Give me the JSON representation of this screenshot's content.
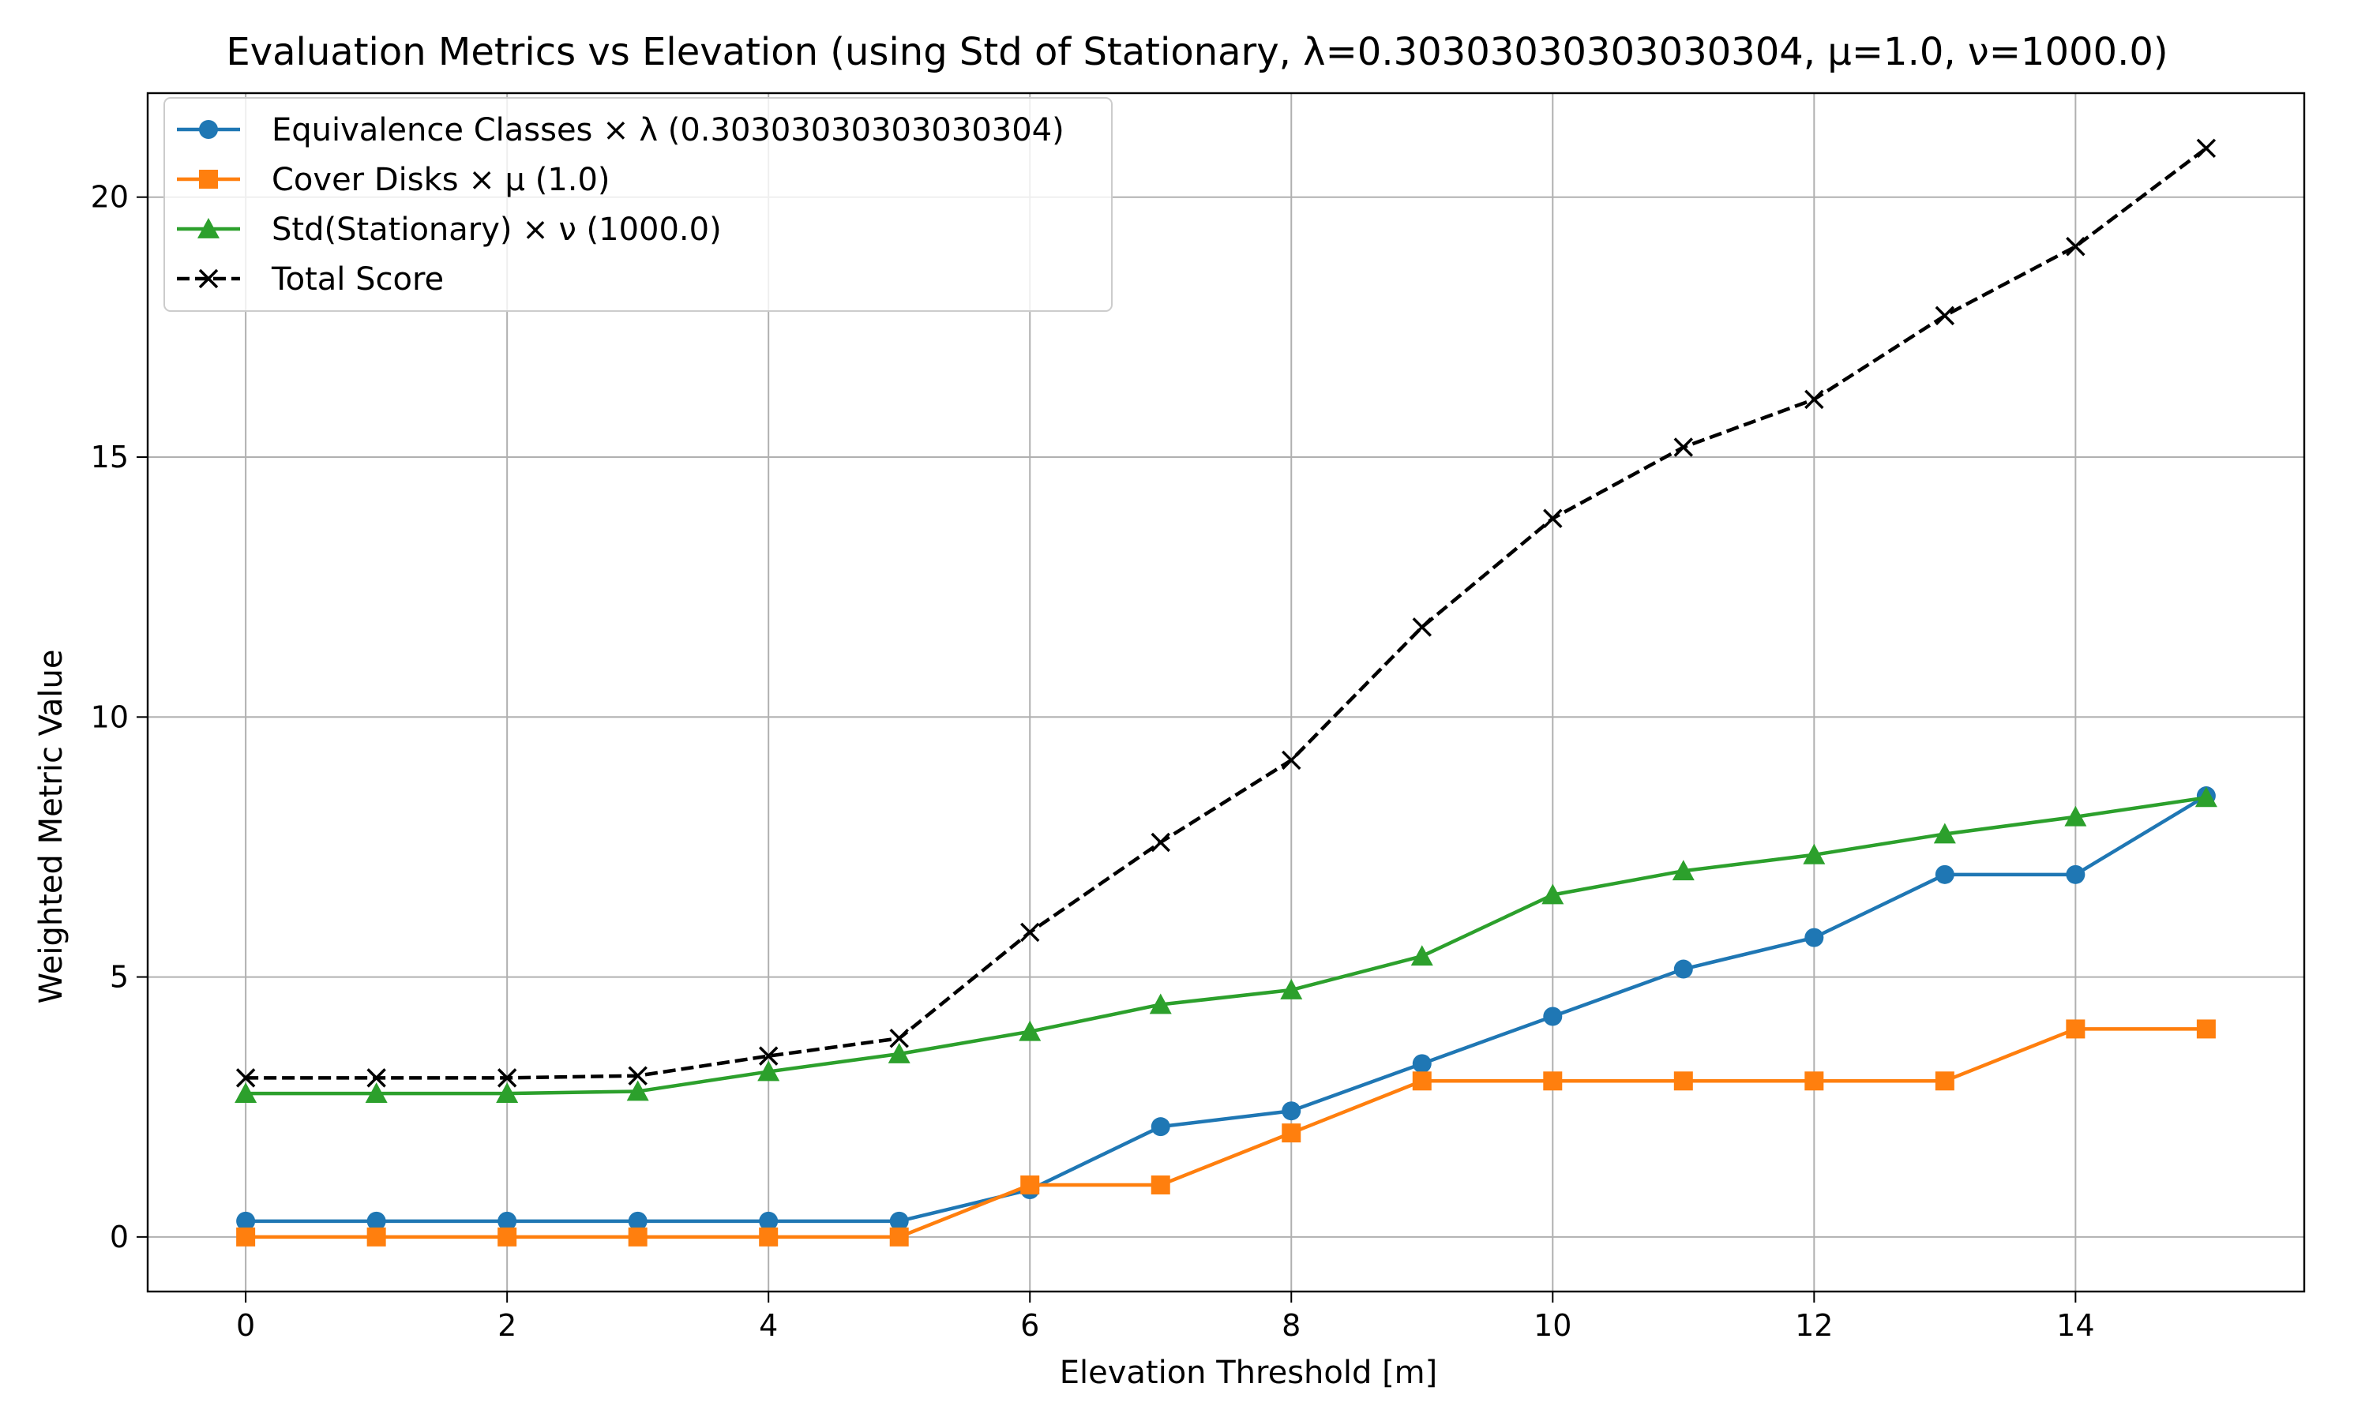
{
  "chart_data": {
    "type": "line",
    "title": "Evaluation Metrics vs Elevation (using Std of Stationary, λ=0.30303030303030304, μ=1.0, ν=1000.0)",
    "xlabel": "Elevation Threshold [m]",
    "ylabel": "Weighted Metric Value",
    "xlim": [
      -0.75,
      15.75
    ],
    "ylim": [
      -1.05,
      22.0
    ],
    "xticks": [
      0,
      2,
      4,
      6,
      8,
      10,
      12,
      14
    ],
    "yticks": [
      0,
      5,
      10,
      15,
      20
    ],
    "grid": true,
    "legend_position": "top-left",
    "x": [
      0,
      1,
      2,
      3,
      4,
      5,
      6,
      7,
      8,
      9,
      10,
      11,
      12,
      13,
      14,
      15
    ],
    "series": [
      {
        "name": "Equivalence Classes × λ (0.30303030303030304)",
        "color": "#1f77b4",
        "marker": "circle",
        "linestyle": "solid",
        "values": [
          0.303,
          0.303,
          0.303,
          0.303,
          0.303,
          0.303,
          0.909,
          2.121,
          2.424,
          3.333,
          4.242,
          5.152,
          5.758,
          6.97,
          6.97,
          8.485
        ]
      },
      {
        "name": "Cover Disks × μ (1.0)",
        "color": "#ff7f0e",
        "marker": "square",
        "linestyle": "solid",
        "values": [
          0,
          0,
          0,
          0,
          0,
          0,
          1,
          1,
          2,
          3,
          3,
          3,
          3,
          3,
          4,
          4
        ]
      },
      {
        "name": "Std(Stationary) × ν (1000.0)",
        "color": "#2ca02c",
        "marker": "triangle",
        "linestyle": "solid",
        "values": [
          2.76,
          2.76,
          2.76,
          2.8,
          3.18,
          3.52,
          3.95,
          4.47,
          4.75,
          5.4,
          6.58,
          7.04,
          7.35,
          7.75,
          8.08,
          8.45
        ]
      },
      {
        "name": "Total Score",
        "color": "#000000",
        "marker": "x",
        "linestyle": "dashed",
        "values": [
          3.06,
          3.06,
          3.06,
          3.1,
          3.48,
          3.82,
          5.86,
          7.59,
          9.17,
          11.73,
          13.82,
          15.19,
          16.11,
          17.72,
          19.05,
          20.94
        ]
      }
    ]
  }
}
